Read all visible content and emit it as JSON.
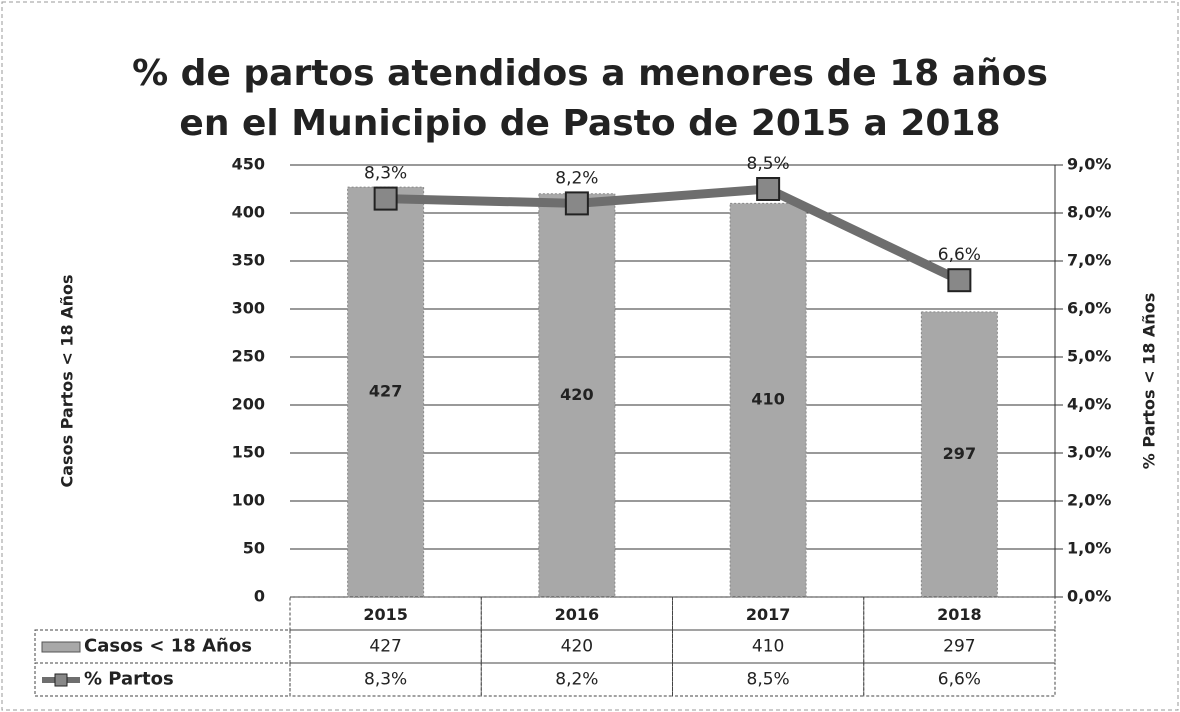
{
  "chart_data": {
    "type": "combo",
    "title": [
      "% de partos atendidos a menores de 18 años",
      "en el Municipio de Pasto de 2015 a 2018"
    ],
    "y_label": "Casos Partos < 18 Años",
    "y2_label": "% Partos < 18 Años",
    "categories": [
      "2015",
      "2016",
      "2017",
      "2018"
    ],
    "series": [
      {
        "name": "Casos < 18 Años",
        "type": "bar",
        "color": "#a8a8a8",
        "values": [
          427,
          420,
          410,
          297
        ]
      },
      {
        "name": "% Partos",
        "type": "line",
        "axis": "y2",
        "color": "#6e6e6e",
        "values": [
          8.3,
          8.2,
          8.5,
          6.6
        ],
        "value_labels": [
          "8,3%",
          "8,2%",
          "8,5%",
          "6,6%"
        ]
      }
    ],
    "ylim": [
      0,
      450
    ],
    "yticks": [
      0,
      50,
      100,
      150,
      200,
      250,
      300,
      350,
      400,
      450
    ],
    "y2lim": [
      0,
      9
    ],
    "y2ticks": [
      {
        "value": 0,
        "label": "0,0%"
      },
      {
        "value": 1,
        "label": "1,0%"
      },
      {
        "value": 2,
        "label": "2,0%"
      },
      {
        "value": 3,
        "label": "3,0%"
      },
      {
        "value": 4,
        "label": "4,0%"
      },
      {
        "value": 5,
        "label": "5,0%"
      },
      {
        "value": 6,
        "label": "6,0%"
      },
      {
        "value": 7,
        "label": "7,0%"
      },
      {
        "value": 8,
        "label": "8,0%"
      },
      {
        "value": 9,
        "label": "9,0%"
      }
    ],
    "grid": true,
    "data_table": true
  }
}
